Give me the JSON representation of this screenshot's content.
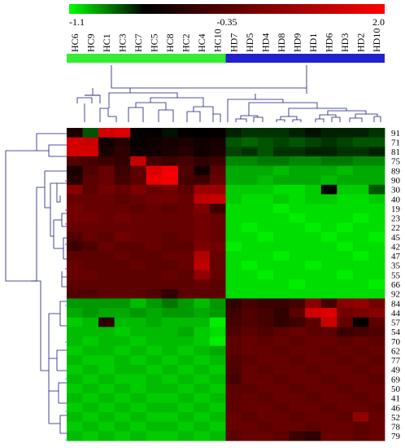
{
  "chart_data": {
    "type": "heatmap",
    "title": "",
    "xlabel": "",
    "ylabel": "",
    "color_scale": {
      "min_label": "-1.1",
      "mid_label": "-0.35",
      "max_label": "2.0",
      "min": -1.1,
      "mid": -0.35,
      "max": 2.0,
      "low_color": "#00ff00",
      "mid_color": "#000000",
      "high_color": "#ff0000"
    },
    "columns": [
      "HC6",
      "HC9",
      "HC1",
      "HC3",
      "HC7",
      "HC5",
      "HC8",
      "HC2",
      "HC4",
      "HC10",
      "HD7",
      "HD5",
      "HD4",
      "HD8",
      "HD9",
      "HD1",
      "HD6",
      "HD3",
      "HD2",
      "HD10"
    ],
    "groups": [
      {
        "count": 10,
        "color": "#33ee33"
      },
      {
        "count": 10,
        "color": "#2222cc"
      }
    ],
    "rows": [
      "91",
      "71",
      "81",
      "75",
      "89",
      "90",
      "30",
      "40",
      "19",
      "23",
      "22",
      "45",
      "42",
      "47",
      "35",
      "55",
      "66",
      "92",
      "84",
      "44",
      "57",
      "54",
      "70",
      "62",
      "77",
      "49",
      "69",
      "50",
      "41",
      "46",
      "52",
      "78",
      "79"
    ],
    "values": [
      [
        -0.1,
        -0.6,
        1.6,
        1.7,
        -0.3,
        -0.3,
        -0.4,
        -0.3,
        -0.35,
        -0.3,
        -0.45,
        -0.5,
        -0.5,
        -0.5,
        -0.45,
        -0.4,
        -0.45,
        -0.45,
        -0.45,
        -0.5
      ],
      [
        1.6,
        1.5,
        -0.2,
        0.0,
        -0.3,
        -0.2,
        -0.15,
        -0.1,
        -0.2,
        -0.15,
        -0.6,
        -0.65,
        -0.6,
        -0.55,
        -0.6,
        -0.55,
        -0.5,
        -0.55,
        -0.6,
        -0.6
      ],
      [
        1.6,
        1.6,
        -0.1,
        0.1,
        -0.2,
        -0.2,
        -0.1,
        0.0,
        -0.2,
        -0.1,
        -0.55,
        -0.5,
        -0.6,
        -0.5,
        -0.5,
        -0.45,
        -0.45,
        -0.5,
        -0.5,
        -0.45
      ],
      [
        0.4,
        0.3,
        0.2,
        0.1,
        1.5,
        0.3,
        0.2,
        0.3,
        0.1,
        0.2,
        -0.75,
        -0.75,
        -0.7,
        -0.7,
        -0.75,
        -0.75,
        -0.7,
        -0.7,
        -0.75,
        -0.75
      ],
      [
        -0.1,
        0.4,
        0.6,
        0.2,
        0.5,
        1.7,
        1.9,
        0.4,
        -0.2,
        0.5,
        -0.85,
        -0.85,
        -0.85,
        -0.9,
        -0.85,
        -0.85,
        -0.85,
        -0.9,
        -0.85,
        -0.85
      ],
      [
        0.0,
        0.5,
        0.6,
        0.3,
        0.5,
        1.8,
        1.9,
        0.3,
        0.2,
        0.6,
        -0.85,
        -0.85,
        -0.9,
        -0.85,
        -0.85,
        -0.85,
        -0.9,
        -0.85,
        -0.85,
        -0.85
      ],
      [
        0.9,
        0.5,
        0.7,
        0.6,
        0.8,
        0.6,
        0.7,
        0.5,
        1.1,
        1.1,
        -0.95,
        -0.95,
        -0.95,
        -1.0,
        -1.0,
        -0.95,
        -0.3,
        -0.95,
        -0.95,
        -0.6
      ],
      [
        0.6,
        0.6,
        0.6,
        0.5,
        0.6,
        0.7,
        0.7,
        0.6,
        1.4,
        1.5,
        -0.95,
        -1.0,
        -1.0,
        -0.95,
        -1.0,
        -0.95,
        -0.95,
        -1.0,
        -1.0,
        -0.95
      ],
      [
        0.7,
        0.6,
        0.6,
        0.6,
        0.5,
        0.6,
        0.5,
        0.6,
        0.8,
        0.2,
        -1.0,
        -1.0,
        -1.0,
        -1.05,
        -1.0,
        -1.0,
        -1.0,
        -1.0,
        -1.0,
        -1.0
      ],
      [
        0.7,
        0.7,
        0.6,
        0.7,
        0.6,
        0.6,
        0.6,
        0.6,
        0.7,
        0.6,
        -1.0,
        -1.0,
        -1.0,
        -1.0,
        -1.05,
        -1.0,
        -1.0,
        -1.0,
        -1.05,
        -1.0
      ],
      [
        0.6,
        0.6,
        0.6,
        0.6,
        0.6,
        0.6,
        0.6,
        0.6,
        0.7,
        0.6,
        -1.0,
        -1.05,
        -1.0,
        -1.0,
        -1.0,
        -1.05,
        -1.0,
        -1.05,
        -1.0,
        -1.0
      ],
      [
        0.4,
        0.6,
        0.5,
        0.7,
        0.6,
        0.6,
        0.5,
        0.6,
        0.7,
        0.6,
        -1.0,
        -1.0,
        -1.05,
        -1.0,
        -1.0,
        -1.0,
        -1.05,
        -1.0,
        -1.0,
        -1.05
      ],
      [
        0.2,
        0.4,
        0.6,
        0.5,
        0.5,
        0.6,
        0.5,
        0.5,
        0.8,
        0.7,
        -1.05,
        -1.0,
        -1.0,
        -1.0,
        -1.0,
        -1.0,
        -1.0,
        -1.05,
        -1.0,
        -1.0
      ],
      [
        0.5,
        0.5,
        0.5,
        0.6,
        0.5,
        0.5,
        0.6,
        0.6,
        1.3,
        0.6,
        -1.0,
        -1.0,
        -1.0,
        -1.05,
        -1.0,
        -1.0,
        -1.0,
        -1.0,
        -1.05,
        -1.0
      ],
      [
        0.6,
        0.5,
        0.5,
        0.5,
        0.6,
        0.5,
        0.5,
        0.6,
        1.4,
        0.6,
        -1.0,
        -1.05,
        -1.0,
        -1.0,
        -1.0,
        -1.05,
        -1.0,
        -1.0,
        -1.0,
        -1.0
      ],
      [
        0.6,
        0.6,
        0.5,
        0.5,
        0.5,
        0.5,
        0.6,
        0.5,
        1.0,
        0.6,
        -1.0,
        -1.0,
        -1.05,
        -1.0,
        -1.0,
        -1.0,
        -1.0,
        -1.05,
        -1.0,
        -1.0
      ],
      [
        0.5,
        0.5,
        0.5,
        0.5,
        0.5,
        0.5,
        0.5,
        0.5,
        0.6,
        0.5,
        -1.0,
        -1.0,
        -1.0,
        -1.0,
        -1.05,
        -1.0,
        -1.0,
        -1.0,
        -1.0,
        -1.05
      ],
      [
        0.4,
        0.4,
        0.5,
        0.5,
        0.5,
        0.4,
        0.1,
        0.5,
        0.5,
        0.5,
        -1.0,
        -1.0,
        -1.0,
        -1.0,
        -1.0,
        -1.0,
        -1.0,
        -1.0,
        -1.0,
        -1.0
      ],
      [
        -0.8,
        -0.8,
        -0.8,
        -0.8,
        -0.9,
        -0.8,
        -0.7,
        -0.8,
        -0.9,
        -0.8,
        0.1,
        0.3,
        0.2,
        0.2,
        0.3,
        0.9,
        0.3,
        0.9,
        1.0,
        0.7
      ],
      [
        -0.85,
        -0.8,
        -0.85,
        -0.85,
        -0.8,
        -0.85,
        -0.8,
        -0.8,
        -0.85,
        -0.8,
        0.2,
        0.4,
        0.3,
        0.1,
        0.5,
        1.6,
        1.7,
        0.7,
        0.8,
        0.9
      ],
      [
        -0.95,
        -0.9,
        0.1,
        -0.9,
        -0.9,
        -0.85,
        -0.9,
        -0.9,
        -0.9,
        -1.05,
        0.3,
        0.4,
        0.3,
        0.1,
        0.2,
        0.5,
        1.5,
        0.6,
        -0.3,
        0.5
      ],
      [
        -0.9,
        -0.9,
        -0.9,
        -0.95,
        -0.9,
        -0.9,
        -0.9,
        -0.85,
        -0.95,
        -1.0,
        0.4,
        0.5,
        0.4,
        0.5,
        0.6,
        0.5,
        0.5,
        0.2,
        0.3,
        0.4
      ],
      [
        -0.9,
        -0.95,
        -0.9,
        -0.9,
        -0.95,
        -0.9,
        -0.9,
        -0.9,
        -0.95,
        -1.05,
        0.5,
        0.6,
        0.5,
        0.6,
        0.5,
        0.6,
        0.6,
        0.5,
        0.6,
        0.5
      ],
      [
        -0.95,
        -0.9,
        -0.9,
        -0.95,
        -0.9,
        -0.95,
        -0.9,
        -0.95,
        -0.9,
        -0.85,
        0.5,
        0.6,
        0.6,
        0.5,
        0.6,
        0.6,
        0.5,
        0.6,
        0.5,
        0.6
      ],
      [
        -0.9,
        -0.95,
        -0.95,
        -0.9,
        -0.95,
        -0.9,
        -0.95,
        -0.9,
        -0.95,
        -0.9,
        0.4,
        0.5,
        0.6,
        0.6,
        0.5,
        0.6,
        0.6,
        0.5,
        0.6,
        0.5
      ],
      [
        -0.95,
        -0.9,
        -0.95,
        -0.9,
        -0.9,
        -0.95,
        -0.9,
        -0.95,
        -0.9,
        -0.95,
        0.4,
        0.6,
        0.5,
        0.6,
        0.6,
        0.5,
        0.6,
        0.6,
        0.5,
        0.6
      ],
      [
        -0.9,
        -0.95,
        -0.9,
        -0.95,
        -0.95,
        -0.9,
        -0.95,
        -0.9,
        -0.95,
        -0.9,
        0.3,
        0.6,
        0.6,
        0.5,
        0.6,
        0.6,
        0.5,
        0.6,
        0.6,
        0.5
      ],
      [
        -0.95,
        -0.9,
        -0.95,
        -0.9,
        -0.95,
        -0.9,
        -0.9,
        -0.95,
        -0.9,
        -0.95,
        0.5,
        0.5,
        0.6,
        0.6,
        0.5,
        0.6,
        0.6,
        0.5,
        0.6,
        0.6
      ],
      [
        -0.9,
        -0.95,
        -0.9,
        -0.95,
        -0.9,
        -0.95,
        -0.95,
        -0.9,
        -0.95,
        -0.9,
        0.5,
        0.6,
        0.5,
        0.6,
        0.6,
        0.5,
        0.6,
        0.6,
        0.5,
        0.6
      ],
      [
        -0.95,
        -0.9,
        -0.95,
        -0.9,
        -0.95,
        -0.9,
        -0.9,
        -0.95,
        -0.9,
        -0.95,
        0.5,
        0.6,
        0.6,
        0.5,
        0.6,
        0.6,
        0.5,
        0.6,
        0.6,
        0.5
      ],
      [
        -0.9,
        -0.95,
        -0.9,
        -0.95,
        -0.9,
        -0.95,
        -0.95,
        -0.9,
        -0.95,
        -0.9,
        0.6,
        0.5,
        0.6,
        0.6,
        0.5,
        0.6,
        0.6,
        0.5,
        1.0,
        0.6
      ],
      [
        -0.95,
        -0.9,
        -0.95,
        -0.9,
        -0.95,
        -0.9,
        -0.9,
        -0.95,
        -0.9,
        -0.95,
        0.6,
        0.6,
        0.5,
        0.6,
        0.6,
        0.5,
        0.6,
        0.6,
        0.5,
        0.6
      ],
      [
        -0.9,
        -0.95,
        -0.9,
        -0.95,
        -0.9,
        -0.95,
        -0.95,
        -0.9,
        -0.95,
        -0.9,
        0.5,
        0.6,
        0.6,
        0.5,
        0.2,
        0.1,
        0.6,
        0.6,
        0.5,
        0.6
      ]
    ],
    "legend": {
      "placement": "top"
    },
    "grid": false
  }
}
